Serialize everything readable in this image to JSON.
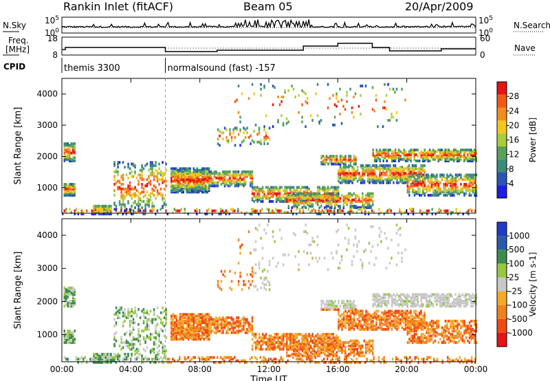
{
  "header": {
    "station": "Rankin Inlet (fitACF)",
    "beam": "Beam 05",
    "date": "20/Apr/2009"
  },
  "side_labels": {
    "nsky": "N.Sky",
    "nsearch": "N.Search",
    "freq_line1": "Freq.",
    "freq_line2": "[MHz]",
    "nave": "Nave",
    "cpid": "CPID"
  },
  "noise_axis": {
    "left_ticks": [
      "10^5",
      "10^0"
    ],
    "right_ticks": [
      "10^5",
      "10^0"
    ]
  },
  "freq_axis": {
    "left_ticks": [
      "18",
      "8"
    ],
    "right_ticks": [
      "60",
      "0"
    ]
  },
  "cpid_segments": [
    {
      "label": "themis 3300",
      "start_hour": 0
    },
    {
      "label": "normalsound (fast) -157",
      "start_hour": 6.0
    }
  ],
  "colors": {
    "power": [
      "#1e1ee6",
      "#2a55b4",
      "#3c8c78",
      "#5aa05a",
      "#a8cc3c",
      "#f2c81e",
      "#f28c1e",
      "#f25a14",
      "#e61414"
    ],
    "velocity": [
      "#e61414",
      "#f04a14",
      "#f0821e",
      "#f5aa28",
      "#c8c8c8",
      "#96c83c",
      "#3c8c50",
      "#2a5aaa",
      "#1e3cc8"
    ]
  },
  "chart_data": [
    {
      "type": "heatmap",
      "name": "Power",
      "xlabel": "",
      "ylabel": "Slant Range [km]",
      "xlim": [
        0,
        24
      ],
      "ylim": [
        180,
        4500
      ],
      "xticks": [
        "00:00",
        "04:00",
        "08:00",
        "12:00",
        "16:00",
        "20:00",
        "00:00"
      ],
      "yticks": [
        1000,
        2000,
        3000,
        4000
      ],
      "colorbar": {
        "label": "Power [dB]",
        "ticks": [
          4,
          8,
          12,
          16,
          20,
          24,
          28
        ],
        "range": [
          0,
          32
        ]
      },
      "mode_boundary_hour": 6.0
    },
    {
      "type": "heatmap",
      "name": "Velocity",
      "xlabel": "Time UT",
      "ylabel": "Slant Range [km]",
      "xlim": [
        0,
        24
      ],
      "ylim": [
        180,
        4500
      ],
      "xticks": [
        "00:00",
        "04:00",
        "08:00",
        "12:00",
        "16:00",
        "20:00",
        "00:00"
      ],
      "yticks": [
        1000,
        2000,
        3000,
        4000
      ],
      "colorbar": {
        "label": "Velocity [m s-1]",
        "ticks": [
          "1000",
          "500",
          "100",
          "25",
          "-25",
          "-100",
          "-500",
          "-1000"
        ]
      },
      "mode_boundary_hour": 6.0
    }
  ]
}
